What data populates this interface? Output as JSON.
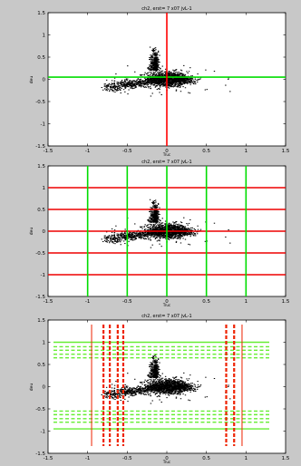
{
  "figure": {
    "background": "#c8c8c8"
  },
  "chart_data": [
    {
      "type": "scatter",
      "title": "ch2, erst= 7 x07 jvL-1",
      "xlabel": "Truc",
      "ylabel": "deu",
      "xlim": [
        -1.5,
        1.5
      ],
      "ylim": [
        -1.5,
        1.5
      ],
      "xticks": [
        "-1.5",
        "-1",
        "-0.5",
        "0",
        "0.5",
        "1",
        "1.5"
      ],
      "yticks": [
        "1.5",
        "1",
        "0.5",
        "0",
        "-0.5",
        "-1",
        "-1.5"
      ],
      "grid": false,
      "overlay": {
        "vlines": [
          {
            "x": 0,
            "color": "#ff0000"
          }
        ],
        "hlines": [
          {
            "y": 0.05,
            "color": "#00dd00"
          }
        ]
      }
    },
    {
      "type": "scatter",
      "title": "ch2, erst= 7 x07 jvL-1",
      "xlabel": "Truc",
      "ylabel": "deu",
      "xlim": [
        -1.5,
        1.5
      ],
      "ylim": [
        -1.5,
        1.5
      ],
      "xticks": [
        "-1.5",
        "-1",
        "-0.5",
        "0",
        "0.5",
        "1",
        "1.5"
      ],
      "yticks": [
        "1.5",
        "1",
        "0.5",
        "0",
        "-0.5",
        "-1",
        "-1.5"
      ],
      "grid": false,
      "overlay": {
        "vlines": [
          {
            "x": -1,
            "color": "#00dd00"
          },
          {
            "x": -0.5,
            "color": "#00dd00"
          },
          {
            "x": 0,
            "color": "#00dd00"
          },
          {
            "x": 0.5,
            "color": "#00dd00"
          },
          {
            "x": 1,
            "color": "#00dd00"
          }
        ],
        "hlines": [
          {
            "y": 1,
            "color": "#ee0000"
          },
          {
            "y": 0.5,
            "color": "#ee0000"
          },
          {
            "y": 0,
            "color": "#ee0000"
          },
          {
            "y": -0.5,
            "color": "#ee0000"
          },
          {
            "y": -1,
            "color": "#ee0000"
          }
        ]
      }
    },
    {
      "type": "scatter",
      "title": "ch2, erst= 7 x07 jvL-1",
      "xlabel": "Truc",
      "ylabel": "deu",
      "xlim": [
        -1.5,
        1.5
      ],
      "ylim": [
        -1.5,
        1.5
      ],
      "xticks": [
        "-1.5",
        "-1",
        "-0.5",
        "0",
        "0.5",
        "1",
        "1.5"
      ],
      "yticks": [
        "1.5",
        "1",
        "0.5",
        "0",
        "-0.5",
        "-1",
        "-1.5"
      ],
      "grid": false,
      "overlay": {
        "vlines": [
          {
            "x": -0.95,
            "color": "#ee2200",
            "style": "solid"
          },
          {
            "x": -0.8,
            "color": "#ee2200",
            "style": "dashed"
          },
          {
            "x": -0.72,
            "color": "#ee2200",
            "style": "dashed"
          },
          {
            "x": -0.62,
            "color": "#ee2200",
            "style": "dashed"
          },
          {
            "x": -0.55,
            "color": "#ee2200",
            "style": "dashed"
          },
          {
            "x": 0.75,
            "color": "#ee2200",
            "style": "dashed"
          },
          {
            "x": 0.85,
            "color": "#ee2200",
            "style": "dashed"
          },
          {
            "x": 0.95,
            "color": "#ee2200",
            "style": "solid"
          }
        ],
        "hlines": [
          {
            "y": 1,
            "color": "#66ee33",
            "style": "solid"
          },
          {
            "y": 0.9,
            "color": "#66ee33",
            "style": "dashed"
          },
          {
            "y": 0.82,
            "color": "#66ee33",
            "style": "dashed"
          },
          {
            "y": 0.73,
            "color": "#66ee33",
            "style": "dashed"
          },
          {
            "y": 0.65,
            "color": "#66ee33",
            "style": "dashed"
          },
          {
            "y": -0.55,
            "color": "#66ee33",
            "style": "dashed"
          },
          {
            "y": -0.63,
            "color": "#66ee33",
            "style": "dashed"
          },
          {
            "y": -0.72,
            "color": "#66ee33",
            "style": "dashed"
          },
          {
            "y": -0.8,
            "color": "#66ee33",
            "style": "dashed"
          },
          {
            "y": -0.95,
            "color": "#66ee33",
            "style": "solid"
          }
        ]
      }
    }
  ]
}
